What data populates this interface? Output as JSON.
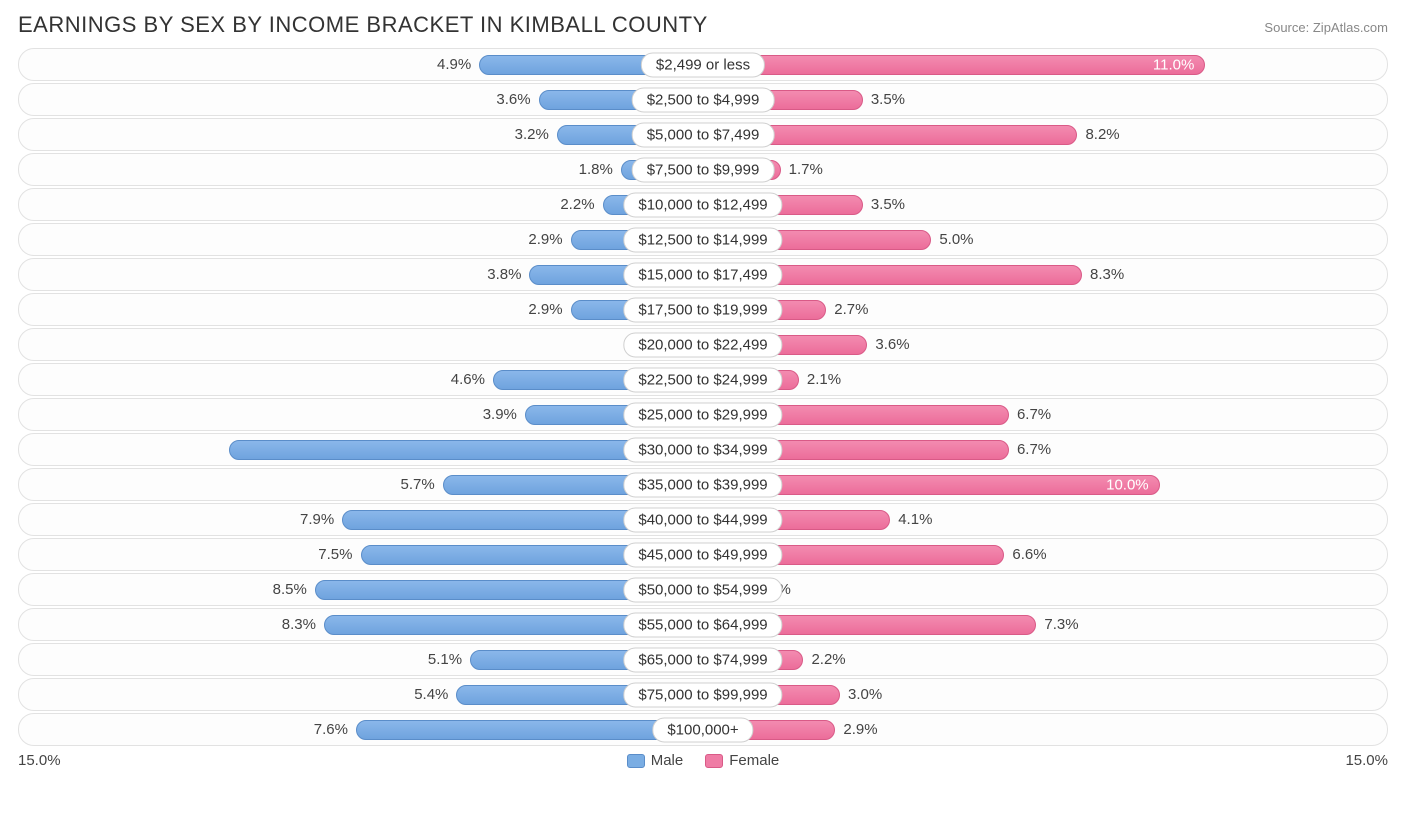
{
  "title": "EARNINGS BY SEX BY INCOME BRACKET IN KIMBALL COUNTY",
  "source_label": "Source:",
  "source_name": "ZipAtlas.com",
  "chart": {
    "type": "diverging-bar",
    "axis_max": 15.0,
    "axis_label_left": "15.0%",
    "axis_label_right": "15.0%",
    "male_color": "#7aade3",
    "female_color": "#ef7ca5",
    "male_border": "#5a8dc9",
    "female_border": "#d95a87",
    "row_bg": "#fdfdfd",
    "row_border": "#e2e2e2",
    "text_color": "#444",
    "inside_text_color": "#ffffff",
    "min_bar_pct_for_any_bar": 0.8,
    "categories": [
      {
        "label": "$2,499 or less",
        "male": 4.9,
        "female": 11.0,
        "female_inside": true
      },
      {
        "label": "$2,500 to $4,999",
        "male": 3.6,
        "female": 3.5
      },
      {
        "label": "$5,000 to $7,499",
        "male": 3.2,
        "female": 8.2
      },
      {
        "label": "$7,500 to $9,999",
        "male": 1.8,
        "female": 1.7
      },
      {
        "label": "$10,000 to $12,499",
        "male": 2.2,
        "female": 3.5
      },
      {
        "label": "$12,500 to $14,999",
        "male": 2.9,
        "female": 5.0
      },
      {
        "label": "$15,000 to $17,499",
        "male": 3.8,
        "female": 8.3
      },
      {
        "label": "$17,500 to $19,999",
        "male": 2.9,
        "female": 2.7
      },
      {
        "label": "$20,000 to $22,499",
        "male": 0.0,
        "female": 3.6
      },
      {
        "label": "$22,500 to $24,999",
        "male": 4.6,
        "female": 2.1
      },
      {
        "label": "$25,000 to $29,999",
        "male": 3.9,
        "female": 6.7
      },
      {
        "label": "$30,000 to $34,999",
        "male": 10.4,
        "female": 6.7,
        "male_inside": true
      },
      {
        "label": "$35,000 to $39,999",
        "male": 5.7,
        "female": 10.0,
        "female_inside": true
      },
      {
        "label": "$40,000 to $44,999",
        "male": 7.9,
        "female": 4.1
      },
      {
        "label": "$45,000 to $49,999",
        "male": 7.5,
        "female": 6.6
      },
      {
        "label": "$50,000 to $54,999",
        "male": 8.5,
        "female": 1.0
      },
      {
        "label": "$55,000 to $64,999",
        "male": 8.3,
        "female": 7.3
      },
      {
        "label": "$65,000 to $74,999",
        "male": 5.1,
        "female": 2.2
      },
      {
        "label": "$75,000 to $99,999",
        "male": 5.4,
        "female": 3.0
      },
      {
        "label": "$100,000+",
        "male": 7.6,
        "female": 2.9
      }
    ]
  },
  "legend": {
    "male": "Male",
    "female": "Female"
  }
}
